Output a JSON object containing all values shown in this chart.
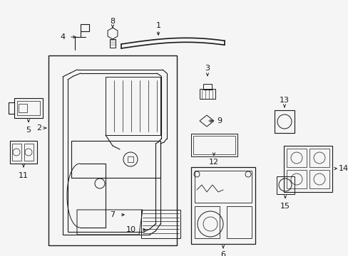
{
  "bg_color": "#f5f5f5",
  "line_color": "#1a1a1a",
  "fig_width": 4.89,
  "fig_height": 3.6,
  "dpi": 100
}
